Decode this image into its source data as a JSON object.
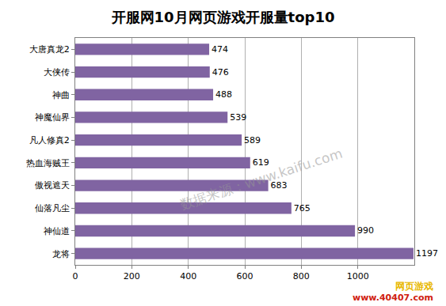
{
  "chart_data": {
    "type": "bar",
    "title": "开服网10月网页游戏开服量top10",
    "orientation": "horizontal",
    "categories": [
      "大唐真龙2",
      "大侠传",
      "神曲",
      "神魔仙界",
      "凡人修真2",
      "热血海贼王",
      "傲视遮天",
      "仙落凡尘",
      "神仙道",
      "龙将"
    ],
    "values": [
      474,
      476,
      488,
      539,
      589,
      619,
      683,
      765,
      990,
      1197
    ],
    "color": "#8064a2",
    "xlim": [
      0,
      1200
    ],
    "xticks": [
      0,
      200,
      400,
      600,
      800,
      1000
    ],
    "grid": true,
    "data_labels": true,
    "annotations": [
      "数据来源：www.kaifu.com",
      "网页游戏",
      "www.40407.com"
    ]
  }
}
